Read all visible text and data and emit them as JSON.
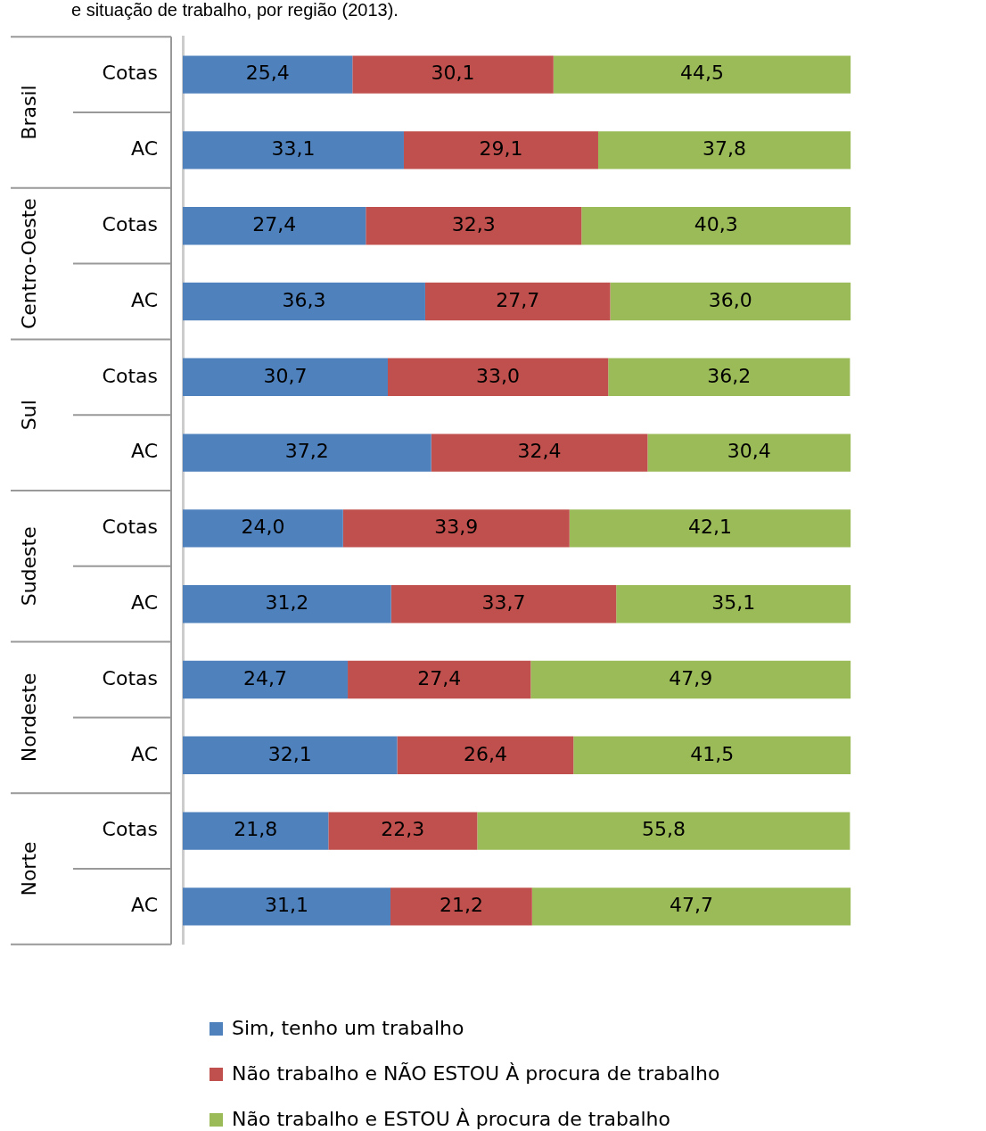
{
  "chart_data": {
    "type": "bar",
    "orientation": "horizontal",
    "stacked": true,
    "title": "e situação de trabalho, por região (2013).",
    "categories": [
      "Cotas",
      "AC",
      "Cotas",
      "AC",
      "Cotas",
      "AC",
      "Cotas",
      "AC",
      "Cotas",
      "AC",
      "Cotas",
      "AC"
    ],
    "annotations": [
      "Brasil",
      "Centro-Oeste",
      "Sul",
      "Sudeste",
      "Nordeste",
      "Norte"
    ],
    "series": [
      {
        "name": "Sim, tenho um trabalho",
        "color": "#4f81bd",
        "values": [
          25.4,
          33.1,
          27.4,
          36.3,
          30.7,
          37.2,
          24.0,
          31.2,
          24.7,
          32.1,
          21.8,
          31.1
        ],
        "value_labels": [
          "25,4",
          "33,1",
          "27,4",
          "36,3",
          "30,7",
          "37,2",
          "24,0",
          "31,2",
          "24,7",
          "32,1",
          "21,8",
          "31,1"
        ]
      },
      {
        "name": "Não trabalho e NÃO ESTOU À  procura de trabalho",
        "color": "#c0504d",
        "values": [
          30.1,
          29.1,
          32.3,
          27.7,
          33.0,
          32.4,
          33.9,
          33.7,
          27.4,
          26.4,
          22.3,
          21.2
        ],
        "value_labels": [
          "30,1",
          "29,1",
          "32,3",
          "27,7",
          "33,0",
          "32,4",
          "33,9",
          "33,7",
          "27,4",
          "26,4",
          "22,3",
          "21,2"
        ]
      },
      {
        "name": "Não trabalho e ESTOU À procura de trabalho",
        "color": "#9bbb59",
        "values": [
          44.5,
          37.8,
          40.3,
          36.0,
          36.2,
          30.4,
          42.1,
          35.1,
          47.9,
          41.5,
          55.8,
          47.7
        ],
        "value_labels": [
          "44,5",
          "37,8",
          "40,3",
          "36,0",
          "36,2",
          "30,4",
          "42,1",
          "35,1",
          "47,9",
          "41,5",
          "55,8",
          "47,7"
        ]
      }
    ],
    "tick_labels": "y",
    "legend": "bottom"
  }
}
